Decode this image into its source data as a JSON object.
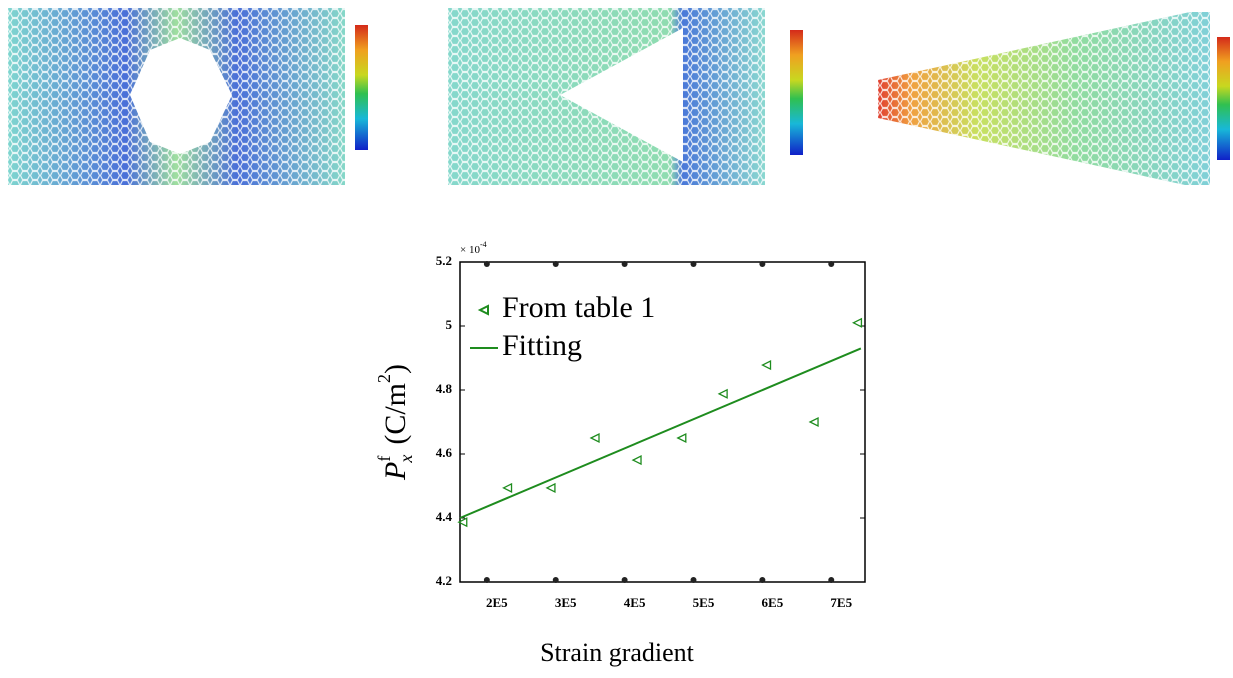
{
  "chart_data": {
    "type": "scatter",
    "x_label": "Strain gradient",
    "y_label": {
      "symbol": "P",
      "sup": "f",
      "sub": "x",
      "unit": "(C/m",
      "unit_exp": "2",
      "close": ")"
    },
    "y_multiplier": {
      "base": "× 10",
      "exponent": "-4"
    },
    "xlim": [
      161000,
      749000
    ],
    "ylim": [
      4.2,
      5.2
    ],
    "xticks": [
      {
        "value": 200000,
        "label": "2E5"
      },
      {
        "value": 300000,
        "label": "3E5"
      },
      {
        "value": 400000,
        "label": "4E5"
      },
      {
        "value": 500000,
        "label": "5E5"
      },
      {
        "value": 600000,
        "label": "6E5"
      },
      {
        "value": 700000,
        "label": "7E5"
      }
    ],
    "yticks": [
      4.2,
      4.4,
      4.6,
      4.8,
      5,
      5.2
    ],
    "legend": "upper left",
    "series": [
      {
        "name": "From table 1",
        "type": "scatter",
        "marker": "triangle-left",
        "color": "#1e8c1e",
        "x": [
          165000,
          230000,
          293000,
          357000,
          418000,
          483000,
          543000,
          606000,
          675000,
          738000
        ],
        "values": [
          4.387,
          4.494,
          4.494,
          4.65,
          4.581,
          4.65,
          4.788,
          4.878,
          4.7,
          5.01
        ]
      },
      {
        "name": "Fitting",
        "type": "line",
        "color": "#1e8c1e",
        "x": [
          161000,
          743000
        ],
        "values": [
          4.4,
          4.93
        ]
      }
    ]
  }
}
